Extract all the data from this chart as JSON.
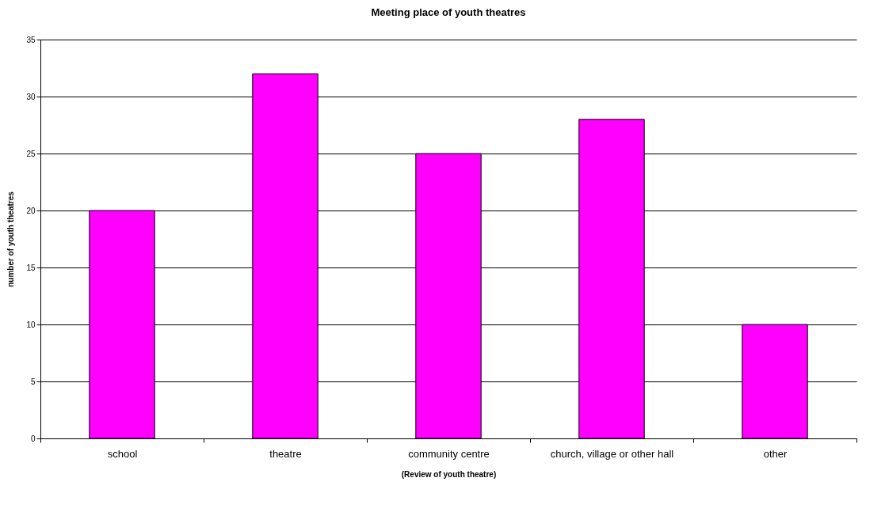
{
  "chart_data": {
    "type": "bar",
    "title": "Meeting place of youth theatres",
    "xlabel": "(Review of youth theatre)",
    "ylabel": "number of youth theatres",
    "categories": [
      "school",
      "theatre",
      "community centre",
      "church, village or other hall",
      "other"
    ],
    "values": [
      20,
      32,
      25,
      28,
      10
    ],
    "color": "#ff00ff",
    "ylim": [
      0,
      35
    ],
    "yticks": [
      0,
      5,
      10,
      15,
      20,
      25,
      30,
      35
    ],
    "grid": "y"
  }
}
